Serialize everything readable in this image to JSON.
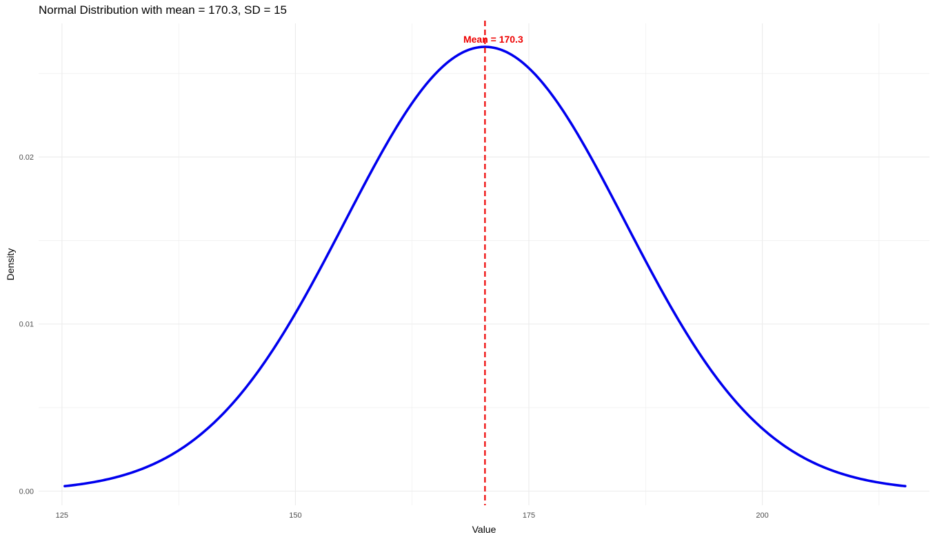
{
  "chart_data": {
    "type": "line",
    "title": "Normal Distribution with mean = 170.3, SD = 15",
    "xlabel": "Value",
    "ylabel": "Density",
    "distribution": {
      "mean": 170.3,
      "sd": 15
    },
    "xlim": [
      122.5,
      217.9
    ],
    "ylim": [
      -0.00085,
      0.028
    ],
    "x_ticks": [
      125,
      150,
      175,
      200
    ],
    "x_tick_labels": [
      "125",
      "150",
      "175",
      "200"
    ],
    "y_ticks": [
      0.0,
      0.01,
      0.02
    ],
    "y_tick_labels": [
      "0.00",
      "0.01",
      "0.02"
    ],
    "x_minor_grid": [
      137.5,
      162.5,
      187.5,
      212.5
    ],
    "y_minor_grid": [
      0.005,
      0.015,
      0.025
    ],
    "series": [
      {
        "color": "#0000ee",
        "x_range": [
          125.3,
          215.3
        ]
      }
    ],
    "annotations": [
      {
        "type": "vline",
        "x": 170.3,
        "color": "#ee0000",
        "style": "dashed",
        "label": "Mean = 170.3"
      }
    ],
    "grid": true,
    "legend": "none",
    "colors": {
      "grid": "#ebebeb",
      "curve": "#0000ee",
      "mean_line": "#ee0000"
    }
  }
}
